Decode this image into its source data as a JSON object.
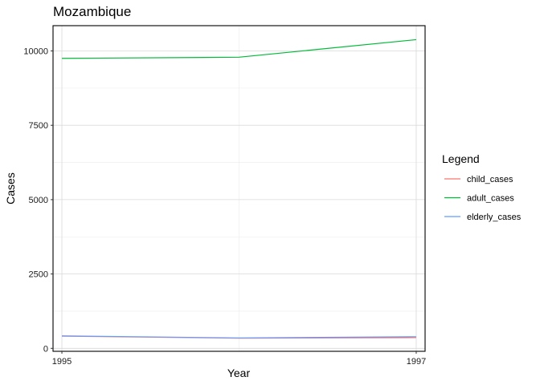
{
  "chart_data": {
    "type": "line",
    "title": "Mozambique",
    "xlabel": "Year",
    "ylabel": "Cases",
    "x": [
      1995,
      1996,
      1997
    ],
    "x_tick_labels": [
      "1995",
      "1997"
    ],
    "x_ticks": [
      1995,
      1997
    ],
    "xlim": [
      1994.95,
      1997.05
    ],
    "ylim": [
      -100,
      10850
    ],
    "y_ticks": [
      0,
      2500,
      5000,
      7500,
      10000
    ],
    "y_tick_labels": [
      "0",
      "2500",
      "5000",
      "7500",
      "10000"
    ],
    "grid": true,
    "legend": {
      "title": "Legend",
      "position": "right"
    },
    "series": [
      {
        "name": "child_cases",
        "color": "#F8766D",
        "values": [
          410,
          340,
          360
        ]
      },
      {
        "name": "adult_cases",
        "color": "#00BA38",
        "values": [
          9750,
          9790,
          10380
        ]
      },
      {
        "name": "elderly_cases",
        "color": "#619CFF",
        "values": [
          420,
          350,
          390
        ]
      }
    ]
  }
}
